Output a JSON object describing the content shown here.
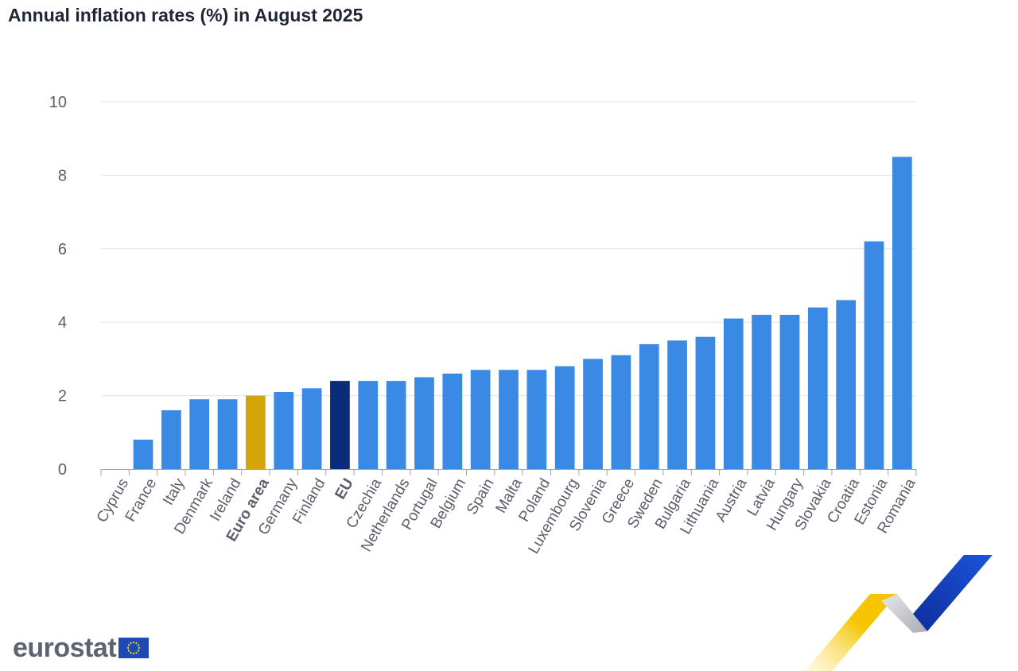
{
  "title": "Annual inflation rates (%) in August 2025",
  "logo_text": "eurostat",
  "colors": {
    "default_bar": "#3a8ae5",
    "euro_area_bar": "#d1a606",
    "eu_bar": "#0c2b7a",
    "grid": "#dfe2ec",
    "axis": "#9ea3ad"
  },
  "chart_data": {
    "type": "bar",
    "title": "Annual inflation rates (%) in August 2025",
    "xlabel": "",
    "ylabel": "",
    "ylim": [
      0,
      10
    ],
    "yticks": [
      0,
      2,
      4,
      6,
      8,
      10
    ],
    "grid": true,
    "categories": [
      "Cyprus",
      "France",
      "Italy",
      "Denmark",
      "Ireland",
      "Euro area",
      "Germany",
      "Finland",
      "EU",
      "Czechia",
      "Netherlands",
      "Portugal",
      "Belgium",
      "Spain",
      "Malta",
      "Poland",
      "Luxembourg",
      "Slovenia",
      "Greece",
      "Sweden",
      "Bulgaria",
      "Lithuania",
      "Austria",
      "Latvia",
      "Hungary",
      "Slovakia",
      "Croatia",
      "Estonia",
      "Romania"
    ],
    "values": [
      0.0,
      0.8,
      1.6,
      1.9,
      1.9,
      2.0,
      2.1,
      2.2,
      2.4,
      2.4,
      2.4,
      2.5,
      2.6,
      2.7,
      2.7,
      2.7,
      2.8,
      3.0,
      3.1,
      3.4,
      3.5,
      3.6,
      4.1,
      4.2,
      4.2,
      4.4,
      4.6,
      6.2,
      8.5
    ],
    "highlight": {
      "Euro area": "#d1a606",
      "EU": "#0c2b7a"
    },
    "bold_categories": [
      "Euro area",
      "EU"
    ]
  }
}
